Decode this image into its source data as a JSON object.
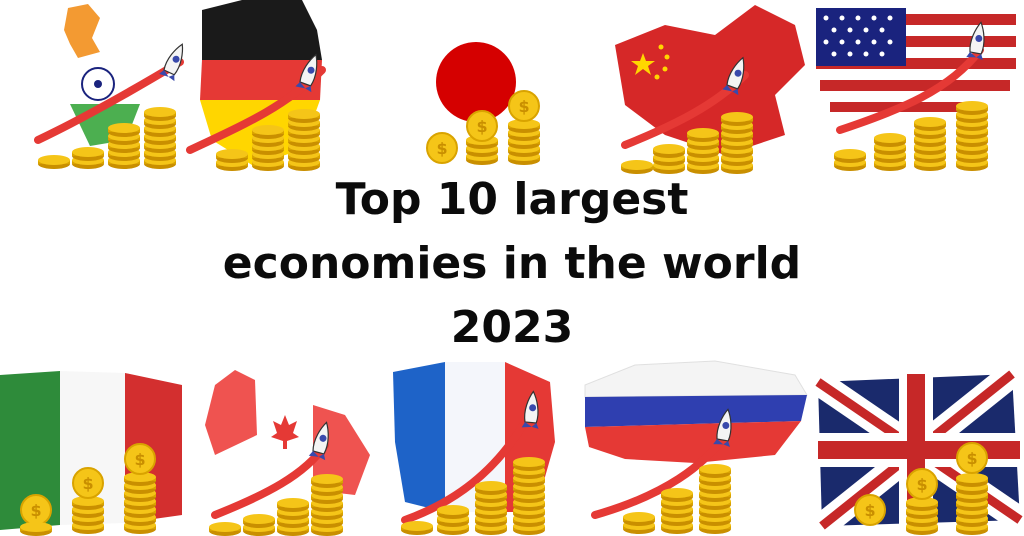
{
  "title": {
    "line1": "Top 10 largest",
    "line2": "economies in the world",
    "line3": "2023"
  },
  "coin_symbol": "$",
  "countries": [
    {
      "name": "india"
    },
    {
      "name": "germany"
    },
    {
      "name": "japan"
    },
    {
      "name": "china"
    },
    {
      "name": "united-states"
    },
    {
      "name": "italy"
    },
    {
      "name": "canada"
    },
    {
      "name": "france"
    },
    {
      "name": "russia"
    },
    {
      "name": "united-kingdom"
    }
  ],
  "colors": {
    "coin_gold": "#f5c518",
    "coin_edge": "#d9a300",
    "coin_shadow": "#c98f00",
    "rocket_trail": "#e53935",
    "text": "#0b0b0b"
  }
}
